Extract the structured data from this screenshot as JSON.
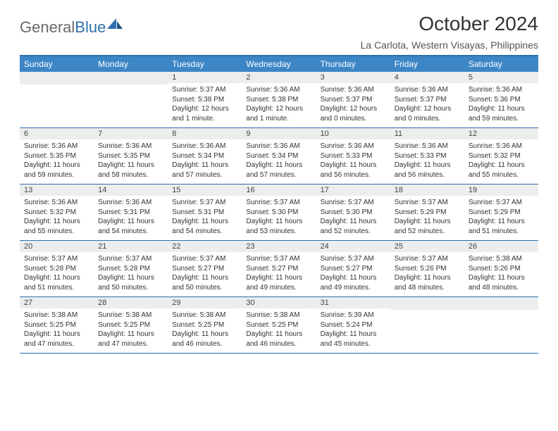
{
  "logo": {
    "text1": "General",
    "text2": "Blue",
    "color_gray": "#6a6a6a",
    "color_blue": "#2f6fad"
  },
  "title": "October 2024",
  "location": "La Carlota, Western Visayas, Philippines",
  "header_bg": "#3d86c6",
  "border_color": "#2f6fad",
  "daynum_bg": "#eceded",
  "days": [
    "Sunday",
    "Monday",
    "Tuesday",
    "Wednesday",
    "Thursday",
    "Friday",
    "Saturday"
  ],
  "weeks": [
    [
      {
        "n": "",
        "sr": "",
        "ss": "",
        "dl": ""
      },
      {
        "n": "",
        "sr": "",
        "ss": "",
        "dl": ""
      },
      {
        "n": "1",
        "sr": "Sunrise: 5:37 AM",
        "ss": "Sunset: 5:38 PM",
        "dl": "Daylight: 12 hours and 1 minute."
      },
      {
        "n": "2",
        "sr": "Sunrise: 5:36 AM",
        "ss": "Sunset: 5:38 PM",
        "dl": "Daylight: 12 hours and 1 minute."
      },
      {
        "n": "3",
        "sr": "Sunrise: 5:36 AM",
        "ss": "Sunset: 5:37 PM",
        "dl": "Daylight: 12 hours and 0 minutes."
      },
      {
        "n": "4",
        "sr": "Sunrise: 5:36 AM",
        "ss": "Sunset: 5:37 PM",
        "dl": "Daylight: 12 hours and 0 minutes."
      },
      {
        "n": "5",
        "sr": "Sunrise: 5:36 AM",
        "ss": "Sunset: 5:36 PM",
        "dl": "Daylight: 11 hours and 59 minutes."
      }
    ],
    [
      {
        "n": "6",
        "sr": "Sunrise: 5:36 AM",
        "ss": "Sunset: 5:35 PM",
        "dl": "Daylight: 11 hours and 59 minutes."
      },
      {
        "n": "7",
        "sr": "Sunrise: 5:36 AM",
        "ss": "Sunset: 5:35 PM",
        "dl": "Daylight: 11 hours and 58 minutes."
      },
      {
        "n": "8",
        "sr": "Sunrise: 5:36 AM",
        "ss": "Sunset: 5:34 PM",
        "dl": "Daylight: 11 hours and 57 minutes."
      },
      {
        "n": "9",
        "sr": "Sunrise: 5:36 AM",
        "ss": "Sunset: 5:34 PM",
        "dl": "Daylight: 11 hours and 57 minutes."
      },
      {
        "n": "10",
        "sr": "Sunrise: 5:36 AM",
        "ss": "Sunset: 5:33 PM",
        "dl": "Daylight: 11 hours and 56 minutes."
      },
      {
        "n": "11",
        "sr": "Sunrise: 5:36 AM",
        "ss": "Sunset: 5:33 PM",
        "dl": "Daylight: 11 hours and 56 minutes."
      },
      {
        "n": "12",
        "sr": "Sunrise: 5:36 AM",
        "ss": "Sunset: 5:32 PM",
        "dl": "Daylight: 11 hours and 55 minutes."
      }
    ],
    [
      {
        "n": "13",
        "sr": "Sunrise: 5:36 AM",
        "ss": "Sunset: 5:32 PM",
        "dl": "Daylight: 11 hours and 55 minutes."
      },
      {
        "n": "14",
        "sr": "Sunrise: 5:36 AM",
        "ss": "Sunset: 5:31 PM",
        "dl": "Daylight: 11 hours and 54 minutes."
      },
      {
        "n": "15",
        "sr": "Sunrise: 5:37 AM",
        "ss": "Sunset: 5:31 PM",
        "dl": "Daylight: 11 hours and 54 minutes."
      },
      {
        "n": "16",
        "sr": "Sunrise: 5:37 AM",
        "ss": "Sunset: 5:30 PM",
        "dl": "Daylight: 11 hours and 53 minutes."
      },
      {
        "n": "17",
        "sr": "Sunrise: 5:37 AM",
        "ss": "Sunset: 5:30 PM",
        "dl": "Daylight: 11 hours and 52 minutes."
      },
      {
        "n": "18",
        "sr": "Sunrise: 5:37 AM",
        "ss": "Sunset: 5:29 PM",
        "dl": "Daylight: 11 hours and 52 minutes."
      },
      {
        "n": "19",
        "sr": "Sunrise: 5:37 AM",
        "ss": "Sunset: 5:29 PM",
        "dl": "Daylight: 11 hours and 51 minutes."
      }
    ],
    [
      {
        "n": "20",
        "sr": "Sunrise: 5:37 AM",
        "ss": "Sunset: 5:28 PM",
        "dl": "Daylight: 11 hours and 51 minutes."
      },
      {
        "n": "21",
        "sr": "Sunrise: 5:37 AM",
        "ss": "Sunset: 5:28 PM",
        "dl": "Daylight: 11 hours and 50 minutes."
      },
      {
        "n": "22",
        "sr": "Sunrise: 5:37 AM",
        "ss": "Sunset: 5:27 PM",
        "dl": "Daylight: 11 hours and 50 minutes."
      },
      {
        "n": "23",
        "sr": "Sunrise: 5:37 AM",
        "ss": "Sunset: 5:27 PM",
        "dl": "Daylight: 11 hours and 49 minutes."
      },
      {
        "n": "24",
        "sr": "Sunrise: 5:37 AM",
        "ss": "Sunset: 5:27 PM",
        "dl": "Daylight: 11 hours and 49 minutes."
      },
      {
        "n": "25",
        "sr": "Sunrise: 5:37 AM",
        "ss": "Sunset: 5:26 PM",
        "dl": "Daylight: 11 hours and 48 minutes."
      },
      {
        "n": "26",
        "sr": "Sunrise: 5:38 AM",
        "ss": "Sunset: 5:26 PM",
        "dl": "Daylight: 11 hours and 48 minutes."
      }
    ],
    [
      {
        "n": "27",
        "sr": "Sunrise: 5:38 AM",
        "ss": "Sunset: 5:25 PM",
        "dl": "Daylight: 11 hours and 47 minutes."
      },
      {
        "n": "28",
        "sr": "Sunrise: 5:38 AM",
        "ss": "Sunset: 5:25 PM",
        "dl": "Daylight: 11 hours and 47 minutes."
      },
      {
        "n": "29",
        "sr": "Sunrise: 5:38 AM",
        "ss": "Sunset: 5:25 PM",
        "dl": "Daylight: 11 hours and 46 minutes."
      },
      {
        "n": "30",
        "sr": "Sunrise: 5:38 AM",
        "ss": "Sunset: 5:25 PM",
        "dl": "Daylight: 11 hours and 46 minutes."
      },
      {
        "n": "31",
        "sr": "Sunrise: 5:39 AM",
        "ss": "Sunset: 5:24 PM",
        "dl": "Daylight: 11 hours and 45 minutes."
      },
      {
        "n": "",
        "sr": "",
        "ss": "",
        "dl": ""
      },
      {
        "n": "",
        "sr": "",
        "ss": "",
        "dl": ""
      }
    ]
  ]
}
